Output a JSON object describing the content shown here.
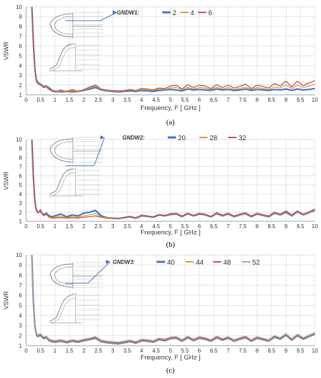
{
  "colors": {
    "grid": "#d9d9d9",
    "axis": "#8c8c8c",
    "text": "#333333",
    "arrow": "#4472c4",
    "series": [
      "#4472c4",
      "#d6a22a",
      "#c0504d",
      "#a5a5a5"
    ]
  },
  "chart_data": [
    {
      "type": "line",
      "caption": "(a)",
      "xlabel": "Frequency, F [ GHz ]",
      "ylabel": "VSWR",
      "xlim": [
        0,
        10
      ],
      "ylim": [
        1,
        10
      ],
      "xticks": [
        "0",
        "0.5",
        "1",
        "1.5",
        "2",
        "2.5",
        "3",
        "3.5",
        "4",
        "4.5",
        "5",
        "5.5",
        "6",
        "6.5",
        "7",
        "7.5",
        "8",
        "8.5",
        "9",
        "9.5",
        "10"
      ],
      "yticks": [
        "1",
        "2",
        "3",
        "4",
        "5",
        "6",
        "7",
        "8",
        "9",
        "10"
      ],
      "legend_title": "GNDW1:",
      "grid": true,
      "inset": "antenna geometry drawing (top-left)",
      "x": [
        0.2,
        0.25,
        0.3,
        0.35,
        0.4,
        0.5,
        0.6,
        0.7,
        0.8,
        0.9,
        1.0,
        1.2,
        1.4,
        1.6,
        1.8,
        2.0,
        2.2,
        2.4,
        2.6,
        2.8,
        3.0,
        3.2,
        3.4,
        3.6,
        3.8,
        4.0,
        4.2,
        4.4,
        4.6,
        4.8,
        5.0,
        5.2,
        5.4,
        5.6,
        5.8,
        6.0,
        6.2,
        6.4,
        6.6,
        6.8,
        7.0,
        7.2,
        7.4,
        7.6,
        7.8,
        8.0,
        8.2,
        8.4,
        8.6,
        8.8,
        9.0,
        9.2,
        9.4,
        9.6,
        9.8,
        10.0
      ],
      "series": [
        {
          "name": "2",
          "values": [
            10,
            6.5,
            3.8,
            2.6,
            2.3,
            2.1,
            1.85,
            1.9,
            1.7,
            1.45,
            1.35,
            1.3,
            1.35,
            1.3,
            1.35,
            1.45,
            1.6,
            1.75,
            1.5,
            1.4,
            1.35,
            1.3,
            1.35,
            1.4,
            1.35,
            1.45,
            1.4,
            1.35,
            1.45,
            1.5,
            1.55,
            1.5,
            1.4,
            1.6,
            1.5,
            1.55,
            1.5,
            1.45,
            1.6,
            1.5,
            1.55,
            1.45,
            1.5,
            1.6,
            1.45,
            1.55,
            1.5,
            1.45,
            1.55,
            1.5,
            1.6,
            1.45,
            1.6,
            1.5,
            1.55,
            1.65
          ]
        },
        {
          "name": "4",
          "values": [
            10,
            6.3,
            3.6,
            2.5,
            2.2,
            2.05,
            1.8,
            1.85,
            1.6,
            1.4,
            1.3,
            1.4,
            1.3,
            1.45,
            1.3,
            1.5,
            1.7,
            1.9,
            1.55,
            1.45,
            1.4,
            1.35,
            1.4,
            1.5,
            1.4,
            1.55,
            1.5,
            1.45,
            1.6,
            1.55,
            1.7,
            1.75,
            1.5,
            1.8,
            1.6,
            1.75,
            1.7,
            1.55,
            1.8,
            1.6,
            1.75,
            1.55,
            1.65,
            1.8,
            1.55,
            1.75,
            1.65,
            1.55,
            1.8,
            1.7,
            2.0,
            1.65,
            2.0,
            1.75,
            1.9,
            2.1
          ]
        },
        {
          "name": "6",
          "values": [
            10,
            6.0,
            3.5,
            2.4,
            2.15,
            2.0,
            1.75,
            1.8,
            1.55,
            1.35,
            1.3,
            1.5,
            1.35,
            1.55,
            1.35,
            1.55,
            1.8,
            2.0,
            1.6,
            1.5,
            1.45,
            1.4,
            1.45,
            1.55,
            1.45,
            1.65,
            1.6,
            1.5,
            1.7,
            1.65,
            1.9,
            2.0,
            1.6,
            2.05,
            1.75,
            2.0,
            1.9,
            1.65,
            2.05,
            1.75,
            2.0,
            1.7,
            1.85,
            2.1,
            1.65,
            2.0,
            1.85,
            1.7,
            2.15,
            1.9,
            2.4,
            1.8,
            2.4,
            1.95,
            2.2,
            2.45
          ]
        }
      ]
    },
    {
      "type": "line",
      "caption": "(b)",
      "xlabel": "Frequency, F [ GHz ]",
      "ylabel": "VSWR",
      "xlim": [
        0,
        10
      ],
      "ylim": [
        1,
        10
      ],
      "xticks": [
        "0",
        "0.5",
        "1",
        "1.5",
        "2",
        "2.5",
        "3",
        "3.5",
        "4",
        "4.5",
        "5",
        "5.5",
        "6",
        "6.5",
        "7",
        "7.5",
        "8",
        "8.5",
        "9",
        "9.5",
        "10"
      ],
      "yticks": [
        "1",
        "2",
        "3",
        "4",
        "5",
        "6",
        "7",
        "8",
        "9",
        "10"
      ],
      "legend_title": "GNDW2:",
      "grid": true,
      "inset": "antenna geometry drawing (top-left)",
      "x": [
        0.2,
        0.25,
        0.3,
        0.35,
        0.4,
        0.5,
        0.6,
        0.7,
        0.8,
        0.9,
        1.0,
        1.2,
        1.4,
        1.6,
        1.8,
        2.0,
        2.2,
        2.4,
        2.6,
        2.8,
        3.0,
        3.2,
        3.4,
        3.6,
        3.8,
        4.0,
        4.2,
        4.4,
        4.6,
        4.8,
        5.0,
        5.2,
        5.4,
        5.6,
        5.8,
        6.0,
        6.2,
        6.4,
        6.6,
        6.8,
        7.0,
        7.2,
        7.4,
        7.6,
        7.8,
        8.0,
        8.2,
        8.4,
        8.6,
        8.8,
        9.0,
        9.2,
        9.4,
        9.6,
        9.8,
        10.0
      ],
      "series": [
        {
          "name": "20",
          "values": [
            10,
            6.0,
            3.3,
            2.3,
            2.0,
            2.1,
            1.7,
            1.9,
            1.6,
            1.5,
            1.6,
            1.8,
            1.5,
            1.7,
            1.6,
            1.9,
            2.0,
            2.2,
            1.6,
            1.4,
            1.35,
            1.3,
            1.4,
            1.5,
            1.35,
            1.6,
            1.55,
            1.45,
            1.7,
            1.6,
            1.75,
            1.8,
            1.5,
            1.85,
            1.6,
            1.8,
            1.7,
            1.5,
            1.85,
            1.6,
            1.8,
            1.5,
            1.7,
            1.85,
            1.5,
            1.8,
            1.65,
            1.5,
            1.9,
            1.7,
            2.0,
            1.6,
            2.05,
            1.7,
            1.95,
            2.2
          ]
        },
        {
          "name": "28",
          "values": [
            10,
            5.8,
            3.2,
            2.25,
            1.95,
            2.2,
            1.65,
            1.8,
            1.5,
            1.4,
            1.45,
            1.55,
            1.4,
            1.5,
            1.45,
            1.6,
            1.7,
            1.85,
            1.5,
            1.4,
            1.35,
            1.3,
            1.45,
            1.55,
            1.4,
            1.65,
            1.6,
            1.5,
            1.75,
            1.65,
            1.8,
            1.85,
            1.55,
            1.9,
            1.65,
            1.85,
            1.75,
            1.55,
            1.9,
            1.65,
            1.85,
            1.55,
            1.75,
            1.9,
            1.55,
            1.85,
            1.7,
            1.55,
            1.95,
            1.75,
            2.1,
            1.65,
            2.1,
            1.75,
            2.0,
            2.3
          ]
        },
        {
          "name": "32",
          "values": [
            10,
            5.6,
            3.1,
            2.2,
            1.9,
            2.3,
            1.6,
            1.75,
            1.45,
            1.35,
            1.35,
            1.4,
            1.35,
            1.4,
            1.35,
            1.45,
            1.5,
            1.6,
            1.45,
            1.35,
            1.3,
            1.3,
            1.45,
            1.55,
            1.4,
            1.7,
            1.6,
            1.5,
            1.75,
            1.65,
            1.85,
            1.9,
            1.6,
            1.9,
            1.65,
            1.9,
            1.8,
            1.55,
            1.95,
            1.7,
            1.9,
            1.6,
            1.8,
            1.95,
            1.6,
            1.9,
            1.75,
            1.6,
            2.0,
            1.8,
            2.15,
            1.7,
            2.15,
            1.8,
            2.05,
            2.35
          ]
        }
      ]
    },
    {
      "type": "line",
      "caption": "(c)",
      "xlabel": "Frequency, F [ GHz ]",
      "ylabel": "VSWR",
      "xlim": [
        0,
        10
      ],
      "ylim": [
        1,
        10
      ],
      "xticks": [
        "0",
        "0.5",
        "1",
        "1.5",
        "2",
        "2.5",
        "3",
        "3.5",
        "4",
        "4.5",
        "5",
        "5.5",
        "6",
        "6.5",
        "7",
        "7.5",
        "8",
        "8.5",
        "9",
        "9.5",
        "10"
      ],
      "yticks": [
        "1",
        "2",
        "3",
        "4",
        "5",
        "6",
        "7",
        "8",
        "9",
        "10"
      ],
      "legend_title": "GNDW3:",
      "grid": true,
      "inset": "antenna geometry drawing (top-left)",
      "x": [
        0.2,
        0.25,
        0.3,
        0.35,
        0.4,
        0.5,
        0.6,
        0.7,
        0.8,
        0.9,
        1.0,
        1.2,
        1.4,
        1.6,
        1.8,
        2.0,
        2.2,
        2.4,
        2.6,
        2.8,
        3.0,
        3.2,
        3.4,
        3.6,
        3.8,
        4.0,
        4.2,
        4.4,
        4.6,
        4.8,
        5.0,
        5.2,
        5.4,
        5.6,
        5.8,
        6.0,
        6.2,
        6.4,
        6.6,
        6.8,
        7.0,
        7.2,
        7.4,
        7.6,
        7.8,
        8.0,
        8.2,
        8.4,
        8.6,
        8.8,
        9.0,
        9.2,
        9.4,
        9.6,
        9.8,
        10.0
      ],
      "series": [
        {
          "name": "40",
          "values": [
            10,
            5.5,
            3.1,
            2.2,
            1.9,
            2.05,
            1.7,
            1.8,
            1.5,
            1.4,
            1.35,
            1.45,
            1.3,
            1.45,
            1.35,
            1.5,
            1.6,
            1.75,
            1.4,
            1.3,
            1.25,
            1.2,
            1.3,
            1.4,
            1.25,
            1.5,
            1.45,
            1.35,
            1.6,
            1.5,
            1.7,
            1.75,
            1.45,
            1.8,
            1.5,
            1.75,
            1.65,
            1.45,
            1.8,
            1.55,
            1.75,
            1.45,
            1.65,
            1.8,
            1.45,
            1.75,
            1.6,
            1.45,
            1.85,
            1.65,
            2.05,
            1.55,
            2.0,
            1.65,
            1.9,
            2.15
          ]
        },
        {
          "name": "44",
          "values": [
            10,
            5.6,
            3.15,
            2.25,
            1.95,
            2.1,
            1.75,
            1.85,
            1.55,
            1.45,
            1.4,
            1.5,
            1.35,
            1.5,
            1.4,
            1.55,
            1.65,
            1.8,
            1.45,
            1.35,
            1.3,
            1.25,
            1.35,
            1.45,
            1.3,
            1.55,
            1.5,
            1.4,
            1.65,
            1.55,
            1.75,
            1.8,
            1.5,
            1.85,
            1.55,
            1.8,
            1.7,
            1.5,
            1.85,
            1.6,
            1.8,
            1.5,
            1.7,
            1.85,
            1.5,
            1.8,
            1.65,
            1.5,
            1.9,
            1.7,
            2.1,
            1.6,
            2.05,
            1.7,
            1.95,
            2.2
          ]
        },
        {
          "name": "48",
          "values": [
            10,
            5.7,
            3.2,
            2.3,
            2.0,
            2.15,
            1.8,
            1.9,
            1.6,
            1.5,
            1.45,
            1.55,
            1.4,
            1.55,
            1.45,
            1.6,
            1.7,
            1.85,
            1.5,
            1.4,
            1.35,
            1.3,
            1.4,
            1.5,
            1.35,
            1.6,
            1.55,
            1.45,
            1.7,
            1.6,
            1.8,
            1.85,
            1.55,
            1.9,
            1.6,
            1.85,
            1.75,
            1.55,
            1.9,
            1.65,
            1.85,
            1.55,
            1.75,
            1.9,
            1.55,
            1.85,
            1.7,
            1.55,
            1.95,
            1.75,
            2.15,
            1.65,
            2.1,
            1.75,
            2.0,
            2.25
          ]
        },
        {
          "name": "52",
          "values": [
            10,
            5.8,
            3.25,
            2.35,
            2.05,
            2.2,
            1.85,
            1.95,
            1.65,
            1.55,
            1.5,
            1.6,
            1.45,
            1.6,
            1.5,
            1.65,
            1.75,
            1.9,
            1.55,
            1.45,
            1.4,
            1.35,
            1.45,
            1.55,
            1.4,
            1.65,
            1.6,
            1.5,
            1.75,
            1.65,
            1.85,
            1.9,
            1.6,
            1.95,
            1.65,
            1.9,
            1.8,
            1.6,
            1.95,
            1.7,
            1.9,
            1.6,
            1.8,
            1.95,
            1.6,
            1.9,
            1.75,
            1.6,
            2.0,
            1.8,
            2.2,
            1.7,
            2.15,
            1.8,
            2.05,
            2.3
          ]
        }
      ]
    }
  ]
}
